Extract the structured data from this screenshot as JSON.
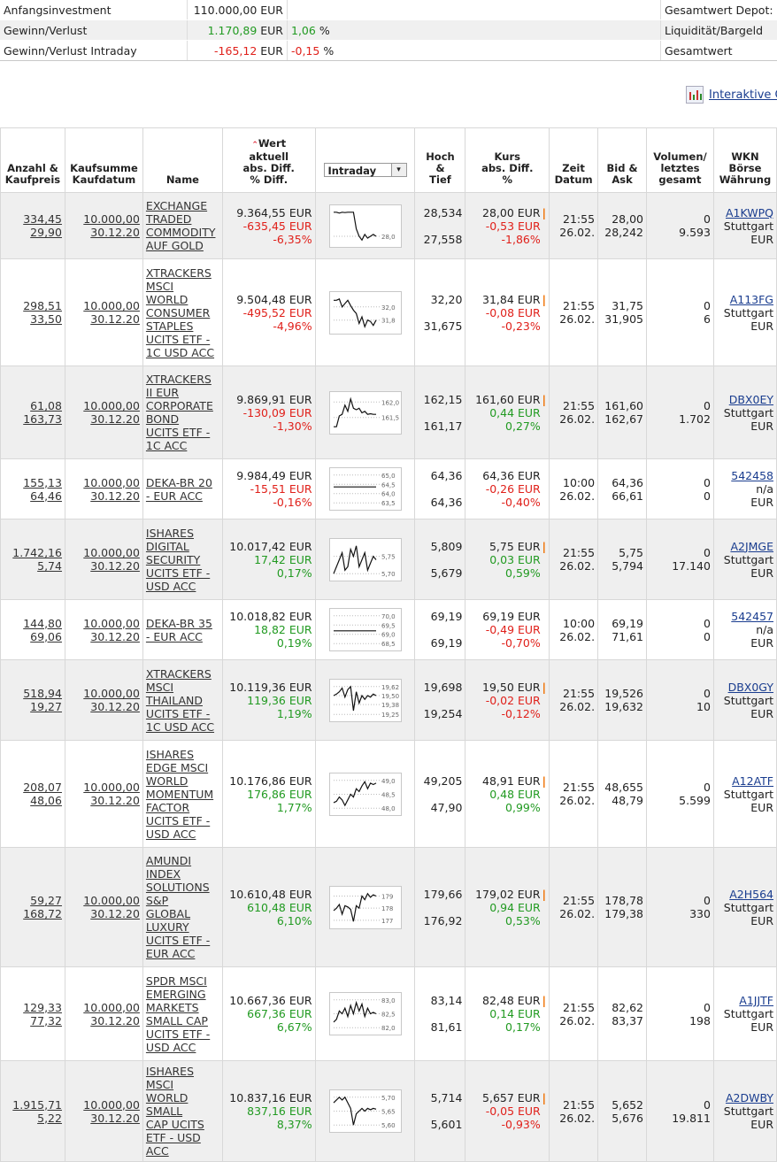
{
  "summary": {
    "rows": [
      {
        "label": "Anfangsinvestment",
        "value": "110.000,00 EUR",
        "pct": "",
        "pct_unit": "",
        "right": "Gesamtwert Depot:"
      },
      {
        "label": "Gewinn/Verlust",
        "value_num": "1.170,89",
        "value_unit": " EUR",
        "pct": "1,06",
        "pct_unit": " %",
        "right": "Liquidität/Bargeld",
        "sign": "pos"
      },
      {
        "label": "Gewinn/Verlust Intraday",
        "value_num": "-165,12",
        "value_unit": " EUR",
        "pct": "-0,15",
        "pct_unit": " %",
        "right": "Gesamtwert",
        "sign": "neg"
      }
    ]
  },
  "interactive_link": "Interaktive Ch",
  "headers": {
    "anzahl": [
      "Anzahl &",
      "Kaufpreis"
    ],
    "kaufsumme": [
      "Kaufsumme",
      "Kaufdatum"
    ],
    "name": "Name",
    "wert": [
      "Wert",
      "aktuell",
      "abs. Diff.",
      "% Diff."
    ],
    "chart_select": "Intraday",
    "hoch": [
      "Hoch",
      "&",
      "Tief"
    ],
    "kurs": [
      "Kurs",
      "abs. Diff.",
      "%"
    ],
    "zeit": [
      "Zeit",
      "Datum"
    ],
    "bid": [
      "Bid &",
      "Ask"
    ],
    "volumen": [
      "Volumen/",
      "letztes",
      "gesamt"
    ],
    "wkn": [
      "WKN",
      "Börse",
      "Währung"
    ]
  },
  "rows": [
    {
      "anzahl": "334,45",
      "kaufpreis": "29,90",
      "summe": "10.000,00",
      "datum": "30.12.20",
      "name": [
        "EXCHANGE",
        "TRADED",
        "COMMODITY",
        "AUF GOLD"
      ],
      "wert": "9.364,55 EUR",
      "diff": "-635,45 EUR",
      "pct": "-6,35%",
      "sign": "neg",
      "ticks": [
        "28,0"
      ],
      "spark": [
        29.3,
        29.3,
        29.25,
        29.3,
        29.28,
        29.3,
        29.3,
        29.3,
        28.4,
        28.0,
        27.8,
        28.1,
        27.9,
        28.0,
        28.1,
        28.0
      ],
      "hoch": "28,534",
      "tief": "27,558",
      "kurs": "28,00 EUR",
      "kdiff": "-0,53 EUR",
      "kpct": "-1,86%",
      "ksign": "neg",
      "zeit": "21:55",
      "zdatum": "26.02.",
      "bid": "28,00",
      "ask": "28,242",
      "vol1": "0",
      "vol2": "9.593",
      "wkn": "A1KWPQ",
      "boerse": "Stuttgart",
      "waehrung": "EUR"
    },
    {
      "anzahl": "298,51",
      "kaufpreis": "33,50",
      "summe": "10.000,00",
      "datum": "30.12.20",
      "name": [
        "XTRACKERS",
        "MSCI",
        "WORLD",
        "CONSUMER",
        "STAPLES",
        "UCITS ETF -",
        "1C USD ACC"
      ],
      "wert": "9.504,48 EUR",
      "diff": "-495,52 EUR",
      "pct": "-4,96%",
      "sign": "neg",
      "ticks": [
        "32,0",
        "31,8"
      ],
      "spark": [
        32.1,
        32.1,
        32.12,
        32.0,
        32.05,
        32.1,
        32.02,
        31.95,
        31.9,
        31.75,
        31.85,
        31.7,
        31.8,
        31.78,
        31.72,
        31.8
      ],
      "hoch": "32,20",
      "tief": "31,675",
      "kurs": "31,84 EUR",
      "kdiff": "-0,08 EUR",
      "kpct": "-0,23%",
      "ksign": "neg",
      "zeit": "21:55",
      "zdatum": "26.02.",
      "bid": "31,75",
      "ask": "31,905",
      "vol1": "0",
      "vol2": "6",
      "wkn": "A113FG",
      "boerse": "Stuttgart",
      "waehrung": "EUR"
    },
    {
      "anzahl": "61,08",
      "kaufpreis": "163,73",
      "summe": "10.000,00",
      "datum": "30.12.20",
      "name": [
        "XTRACKERS",
        "II EUR",
        "CORPORATE",
        "BOND",
        "UCITS ETF -",
        "1C ACC"
      ],
      "wert": "9.869,91 EUR",
      "diff": "-130,09 EUR",
      "pct": "-1,30%",
      "sign": "neg",
      "ticks": [
        "162,0",
        "161,5"
      ],
      "spark": [
        161.2,
        161.2,
        161.55,
        161.6,
        161.9,
        161.7,
        162.1,
        161.8,
        161.75,
        161.8,
        161.65,
        161.7,
        161.6,
        161.62,
        161.6,
        161.6
      ],
      "hoch": "162,15",
      "tief": "161,17",
      "kurs": "161,60 EUR",
      "kdiff": "0,44 EUR",
      "kpct": "0,27%",
      "ksign": "pos",
      "zeit": "21:55",
      "zdatum": "26.02.",
      "bid": "161,60",
      "ask": "162,67",
      "vol1": "0",
      "vol2": "1.702",
      "wkn": "DBX0EY",
      "boerse": "Stuttgart",
      "waehrung": "EUR"
    },
    {
      "anzahl": "155,13",
      "kaufpreis": "64,46",
      "summe": "10.000,00",
      "datum": "30.12.20",
      "name": [
        "DEKA-BR 20",
        "- EUR ACC"
      ],
      "wert": "9.984,49 EUR",
      "diff": "-15,51 EUR",
      "pct": "-0,16%",
      "sign": "neg",
      "ticks": [
        "65,0",
        "64,5",
        "64,0",
        "63,5"
      ],
      "spark": [
        64.36,
        64.36,
        64.36,
        64.36,
        64.36,
        64.36
      ],
      "hoch": "64,36",
      "tief": "64,36",
      "kurs": "64,36 EUR",
      "kdiff": "-0,26 EUR",
      "kpct": "-0,40%",
      "ksign": "neg",
      "zeit": "10:00",
      "zdatum": "26.02.",
      "bid": "64,36",
      "ask": "66,61",
      "vol1": "0",
      "vol2": "0",
      "wkn": "542458",
      "boerse": "n/a",
      "waehrung": "EUR"
    },
    {
      "anzahl": "1.742,16",
      "kaufpreis": "5,74",
      "summe": "10.000,00",
      "datum": "30.12.20",
      "name": [
        "ISHARES",
        "DIGITAL",
        "SECURITY",
        "UCITS ETF -",
        "USD ACC"
      ],
      "wert": "10.017,42 EUR",
      "diff": "17,42 EUR",
      "pct": "0,17%",
      "sign": "pos",
      "ticks": [
        "5,75",
        "5,70"
      ],
      "spark": [
        5.7,
        5.72,
        5.74,
        5.76,
        5.71,
        5.72,
        5.77,
        5.75,
        5.78,
        5.72,
        5.74,
        5.76,
        5.71,
        5.73,
        5.75,
        5.74
      ],
      "hoch": "5,809",
      "tief": "5,679",
      "kurs": "5,75 EUR",
      "kdiff": "0,03 EUR",
      "kpct": "0,59%",
      "ksign": "pos",
      "zeit": "21:55",
      "zdatum": "26.02.",
      "bid": "5,75",
      "ask": "5,794",
      "vol1": "0",
      "vol2": "17.140",
      "wkn": "A2JMGE",
      "boerse": "Stuttgart",
      "waehrung": "EUR"
    },
    {
      "anzahl": "144,80",
      "kaufpreis": "69,06",
      "summe": "10.000,00",
      "datum": "30.12.20",
      "name": [
        "DEKA-BR 35",
        "- EUR ACC"
      ],
      "wert": "10.018,82 EUR",
      "diff": "18,82 EUR",
      "pct": "0,19%",
      "sign": "pos",
      "ticks": [
        "70,0",
        "69,5",
        "69,0",
        "68,5"
      ],
      "spark": [
        69.19,
        69.19,
        69.19,
        69.19,
        69.19,
        69.19
      ],
      "hoch": "69,19",
      "tief": "69,19",
      "kurs": "69,19 EUR",
      "kdiff": "-0,49 EUR",
      "kpct": "-0,70%",
      "ksign": "neg",
      "zeit": "10:00",
      "zdatum": "26.02.",
      "bid": "69,19",
      "ask": "71,61",
      "vol1": "0",
      "vol2": "0",
      "wkn": "542457",
      "boerse": "n/a",
      "waehrung": "EUR"
    },
    {
      "anzahl": "518,94",
      "kaufpreis": "19,27",
      "summe": "10.000,00",
      "datum": "30.12.20",
      "name": [
        "XTRACKERS",
        "MSCI",
        "THAILAND",
        "UCITS ETF -",
        "1C USD ACC"
      ],
      "wert": "10.119,36 EUR",
      "diff": "119,36 EUR",
      "pct": "1,19%",
      "sign": "pos",
      "ticks": [
        "19,62",
        "19,50",
        "19,38",
        "19,25"
      ],
      "spark": [
        19.5,
        19.52,
        19.55,
        19.6,
        19.48,
        19.58,
        19.62,
        19.3,
        19.55,
        19.4,
        19.5,
        19.45,
        19.5,
        19.48,
        19.52,
        19.5
      ],
      "hoch": "19,698",
      "tief": "19,254",
      "kurs": "19,50 EUR",
      "kdiff": "-0,02 EUR",
      "kpct": "-0,12%",
      "ksign": "neg",
      "zeit": "21:55",
      "zdatum": "26.02.",
      "bid": "19,526",
      "ask": "19,632",
      "vol1": "0",
      "vol2": "10",
      "wkn": "DBX0GY",
      "boerse": "Stuttgart",
      "waehrung": "EUR"
    },
    {
      "anzahl": "208,07",
      "kaufpreis": "48,06",
      "summe": "10.000,00",
      "datum": "30.12.20",
      "name": [
        "ISHARES",
        "EDGE MSCI",
        "WORLD",
        "MOMENTUM",
        "FACTOR",
        "UCITS ETF -",
        "USD ACC"
      ],
      "wert": "10.176,86 EUR",
      "diff": "176,86 EUR",
      "pct": "1,77%",
      "sign": "pos",
      "ticks": [
        "49,0",
        "48,5",
        "48,0"
      ],
      "spark": [
        48.2,
        48.25,
        48.4,
        48.3,
        48.1,
        48.3,
        48.5,
        48.4,
        48.7,
        48.6,
        48.8,
        48.95,
        48.7,
        48.9,
        48.85,
        48.9
      ],
      "hoch": "49,205",
      "tief": "47,90",
      "kurs": "48,91 EUR",
      "kdiff": "0,48 EUR",
      "kpct": "0,99%",
      "ksign": "pos",
      "zeit": "21:55",
      "zdatum": "26.02.",
      "bid": "48,655",
      "ask": "48,79",
      "vol1": "0",
      "vol2": "5.599",
      "wkn": "A12ATF",
      "boerse": "Stuttgart",
      "waehrung": "EUR"
    },
    {
      "anzahl": "59,27",
      "kaufpreis": "168,72",
      "summe": "10.000,00",
      "datum": "30.12.20",
      "name": [
        "AMUNDI",
        "INDEX",
        "SOLUTIONS",
        "S&P",
        "GLOBAL",
        "LUXURY",
        "UCITS ETF -",
        "EUR ACC"
      ],
      "wert": "10.610,48 EUR",
      "diff": "610,48 EUR",
      "pct": "6,10%",
      "sign": "pos",
      "ticks": [
        "179",
        "178",
        "177"
      ],
      "spark": [
        177.8,
        178.0,
        178.3,
        177.5,
        178.2,
        178.1,
        177.9,
        176.9,
        178.2,
        178.0,
        179.0,
        178.7,
        179.2,
        178.9,
        179.1,
        179.0
      ],
      "hoch": "179,66",
      "tief": "176,92",
      "kurs": "179,02 EUR",
      "kdiff": "0,94 EUR",
      "kpct": "0,53%",
      "ksign": "pos",
      "zeit": "21:55",
      "zdatum": "26.02.",
      "bid": "178,78",
      "ask": "179,38",
      "vol1": "0",
      "vol2": "330",
      "wkn": "A2H564",
      "boerse": "Stuttgart",
      "waehrung": "EUR"
    },
    {
      "anzahl": "129,33",
      "kaufpreis": "77,32",
      "summe": "10.000,00",
      "datum": "30.12.20",
      "name": [
        "SPDR MSCI",
        "EMERGING",
        "MARKETS",
        "SMALL CAP",
        "UCITS ETF -",
        "USD ACC"
      ],
      "wert": "10.667,36 EUR",
      "diff": "667,36 EUR",
      "pct": "6,67%",
      "sign": "pos",
      "ticks": [
        "83,0",
        "82,5",
        "82,0"
      ],
      "spark": [
        82.2,
        82.3,
        82.6,
        82.5,
        82.7,
        82.4,
        82.8,
        82.5,
        82.9,
        82.6,
        82.85,
        82.4,
        82.7,
        82.5,
        82.55,
        82.5
      ],
      "hoch": "83,14",
      "tief": "81,61",
      "kurs": "82,48 EUR",
      "kdiff": "0,14 EUR",
      "kpct": "0,17%",
      "ksign": "pos",
      "zeit": "21:55",
      "zdatum": "26.02.",
      "bid": "82,62",
      "ask": "83,37",
      "vol1": "0",
      "vol2": "198",
      "wkn": "A1JJTF",
      "boerse": "Stuttgart",
      "waehrung": "EUR"
    },
    {
      "anzahl": "1.915,71",
      "kaufpreis": "5,22",
      "summe": "10.000,00",
      "datum": "30.12.20",
      "name": [
        "ISHARES",
        "MSCI",
        "WORLD",
        "SMALL",
        "CAP UCITS",
        "ETF - USD",
        "ACC"
      ],
      "wert": "10.837,16 EUR",
      "diff": "837,16 EUR",
      "pct": "8,37%",
      "sign": "pos",
      "ticks": [
        "5,70",
        "5,65",
        "5,60"
      ],
      "spark": [
        5.68,
        5.69,
        5.7,
        5.69,
        5.7,
        5.68,
        5.66,
        5.6,
        5.64,
        5.65,
        5.66,
        5.65,
        5.66,
        5.655,
        5.66,
        5.657
      ],
      "hoch": "5,714",
      "tief": "5,601",
      "kurs": "5,657 EUR",
      "kdiff": "-0,05 EUR",
      "kpct": "-0,93%",
      "ksign": "neg",
      "zeit": "21:55",
      "zdatum": "26.02.",
      "bid": "5,652",
      "ask": "5,676",
      "vol1": "0",
      "vol2": "19.811",
      "wkn": "A2DWBY",
      "boerse": "Stuttgart",
      "waehrung": "EUR"
    }
  ],
  "colors": {
    "positive": "#219a21",
    "negative": "#e0201a",
    "marker": "#f07000",
    "row_alt": "#efefef"
  }
}
